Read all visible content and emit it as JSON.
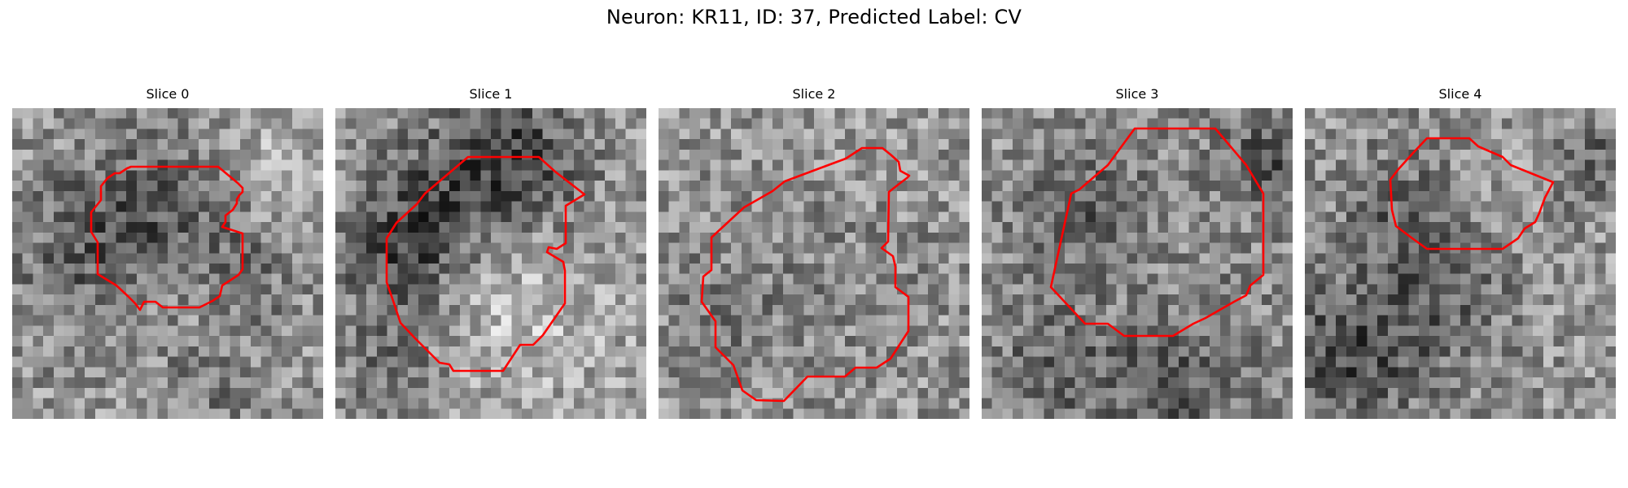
{
  "figure": {
    "title": "Neuron: KR11, ID: 37, Predicted Label: CV",
    "contour_color": "#ff0000"
  },
  "panels": [
    {
      "title": "Slice 0"
    },
    {
      "title": "Slice 1"
    },
    {
      "title": "Slice 2"
    },
    {
      "title": "Slice 3"
    },
    {
      "title": "Slice 4"
    }
  ]
}
